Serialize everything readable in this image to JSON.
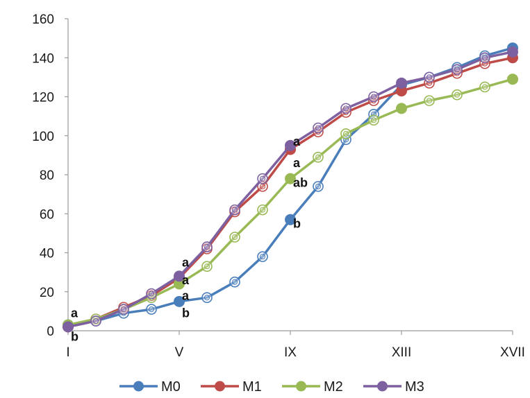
{
  "chart_data": {
    "type": "line",
    "title": "",
    "xlabel": "",
    "ylabel": "",
    "x_positions": [
      1,
      2,
      3,
      4,
      5,
      6,
      7,
      8,
      9,
      10,
      11,
      12,
      13,
      14,
      15,
      16,
      17
    ],
    "x_tick_labels": [
      {
        "x": 1,
        "label": "I"
      },
      {
        "x": 5,
        "label": "V"
      },
      {
        "x": 9,
        "label": "IX"
      },
      {
        "x": 13,
        "label": "XIII"
      },
      {
        "x": 17,
        "label": "XVII"
      }
    ],
    "xlim": [
      1,
      17
    ],
    "ylim": [
      0,
      160
    ],
    "y_ticks": [
      0,
      20,
      40,
      60,
      80,
      100,
      120,
      140,
      160
    ],
    "grid": false,
    "legend_position": "bottom",
    "filled_marker_x": [
      1,
      5,
      9,
      13,
      17
    ],
    "series": [
      {
        "name": "M0",
        "color": "#4a7ebb",
        "values": [
          3,
          5,
          9,
          11,
          15,
          17,
          25,
          38,
          57,
          74,
          98,
          111,
          126,
          130,
          135,
          141,
          145
        ]
      },
      {
        "name": "M1",
        "color": "#be4b48",
        "values": [
          2,
          6,
          12,
          18,
          27,
          42,
          61,
          74,
          93,
          102,
          112,
          118,
          123,
          127,
          132,
          137,
          140
        ]
      },
      {
        "name": "M2",
        "color": "#98b954",
        "values": [
          3,
          6,
          11,
          17,
          24,
          33,
          48,
          62,
          78,
          89,
          101,
          108,
          114,
          118,
          121,
          125,
          129
        ]
      },
      {
        "name": "M3",
        "color": "#7d60a0",
        "values": [
          2,
          5,
          11,
          19,
          28,
          43,
          62,
          78,
          95,
          104,
          114,
          120,
          127,
          130,
          134,
          140,
          143
        ]
      }
    ],
    "annotations": [
      {
        "x": 1,
        "y": 9,
        "text": "a",
        "color": "#111111"
      },
      {
        "x": 1,
        "y": -3,
        "text": "b",
        "color": "#111111"
      },
      {
        "x": 5,
        "y": 35,
        "text": "a",
        "color": "#111111"
      },
      {
        "x": 5,
        "y": 26,
        "text": "a",
        "color": "#111111"
      },
      {
        "x": 5,
        "y": 18,
        "text": "a",
        "color": "#111111"
      },
      {
        "x": 5,
        "y": 9,
        "text": "b",
        "color": "#111111"
      },
      {
        "x": 9,
        "y": 97,
        "text": "a",
        "color": "#111111"
      },
      {
        "x": 9,
        "y": 86,
        "text": "a",
        "color": "#111111"
      },
      {
        "x": 9,
        "y": 76,
        "text": "ab",
        "color": "#111111"
      },
      {
        "x": 9,
        "y": 55,
        "text": "b",
        "color": "#111111"
      }
    ]
  }
}
